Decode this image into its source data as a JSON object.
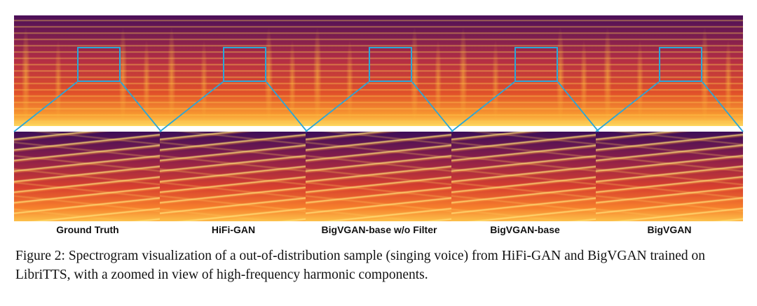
{
  "figure": {
    "panels": [
      {
        "id": "ground-truth",
        "label": "Ground Truth"
      },
      {
        "id": "hifi-gan",
        "label": "HiFi-GAN"
      },
      {
        "id": "bigvgan-base-wo-filter",
        "label": "BigVGAN-base w/o Filter"
      },
      {
        "id": "bigvgan-base",
        "label": "BigVGAN-base"
      },
      {
        "id": "bigvgan",
        "label": "BigVGAN"
      }
    ],
    "colors": {
      "zoom_box": "#2aa6d8",
      "colormap": [
        "#2a0a40",
        "#8a1e4a",
        "#d8402e",
        "#f6802c",
        "#fcd860"
      ]
    }
  },
  "caption": {
    "text": "Figure 2: Spectrogram visualization of a out-of-distribution sample (singing voice) from HiFi-GAN and BigVGAN trained on LibriTTS, with a zoomed in view of high-frequency harmonic components."
  }
}
